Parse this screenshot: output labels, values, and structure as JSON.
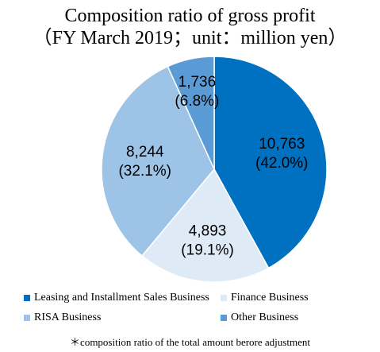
{
  "chart_data": {
    "type": "pie",
    "title_line1": "Composition ratio of gross profit",
    "title_line2": "（FY March 2019；unit：million yen）",
    "slices": [
      {
        "name": "Leasing and Installment Sales Business",
        "value": 10763,
        "value_label": "10,763",
        "percent_label": "(42.0%)",
        "color": "#0070C0"
      },
      {
        "name": "Finance Business",
        "value": 4893,
        "value_label": "4,893",
        "percent_label": "(19.1%)",
        "color": "#DEEBF7"
      },
      {
        "name": "RISA Business",
        "value": 8244,
        "value_label": "8,244",
        "percent_label": "(32.1%)",
        "color": "#9DC3E6"
      },
      {
        "name": "Other Business",
        "value": 1736,
        "value_label": "1,736",
        "percent_label": "(6.8%)",
        "color": "#5B9BD5"
      }
    ],
    "legend_placement": "bottom",
    "footnote": "＊composition ratio of the total amount berore adjustment"
  }
}
